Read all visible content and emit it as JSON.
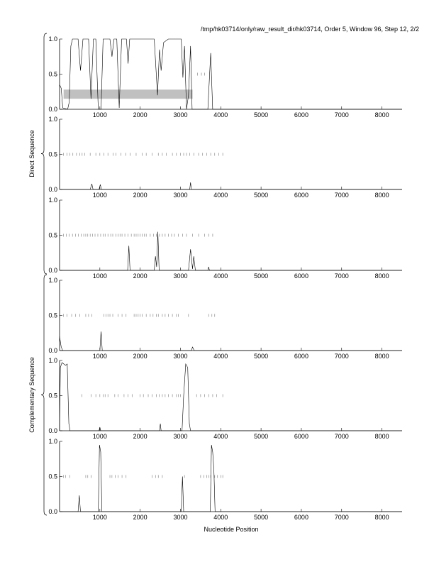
{
  "chart_data": {
    "type": "line",
    "title": "/tmp/hk03714/only/raw_result_dir/hk03714, Order 5, Window 96, Step 12, 2/2",
    "xlabel": "Nucleotide Position",
    "xlim": [
      0,
      8500
    ],
    "ylim": [
      0,
      1
    ],
    "x_ticks": [
      1000,
      2000,
      3000,
      4000,
      5000,
      6000,
      7000,
      8000
    ],
    "y_ticks": [
      "0.0",
      "0.5",
      "1.0"
    ],
    "groups": [
      {
        "label": "Direct Sequence",
        "panels": [
          0,
          1,
          2
        ]
      },
      {
        "label": "Complementary Sequence",
        "panels": [
          3,
          4,
          5
        ]
      }
    ],
    "panels": [
      {
        "points": [
          [
            0,
            0.35
          ],
          [
            40,
            0.3
          ],
          [
            80,
            0.02
          ],
          [
            200,
            0.0
          ],
          [
            240,
            0.1
          ],
          [
            280,
            0.9
          ],
          [
            320,
            1.0
          ],
          [
            460,
            1.0
          ],
          [
            520,
            0.55
          ],
          [
            580,
            1.0
          ],
          [
            720,
            1.0
          ],
          [
            780,
            0.15
          ],
          [
            840,
            1.0
          ],
          [
            900,
            1.0
          ],
          [
            960,
            0.0
          ],
          [
            1030,
            0.0
          ],
          [
            1080,
            1.0
          ],
          [
            1250,
            1.0
          ],
          [
            1300,
            0.75
          ],
          [
            1350,
            1.0
          ],
          [
            1420,
            1.0
          ],
          [
            1480,
            0.02
          ],
          [
            1540,
            1.0
          ],
          [
            1660,
            1.0
          ],
          [
            1700,
            0.65
          ],
          [
            1740,
            1.0
          ],
          [
            2350,
            1.0
          ],
          [
            2430,
            0.2
          ],
          [
            2480,
            0.85
          ],
          [
            2520,
            0.55
          ],
          [
            2580,
            0.95
          ],
          [
            2700,
            1.0
          ],
          [
            3020,
            1.0
          ],
          [
            3060,
            0.45
          ],
          [
            3100,
            0.9
          ],
          [
            3150,
            0.0
          ],
          [
            3200,
            0.2
          ],
          [
            3250,
            0.9
          ],
          [
            3290,
            0.0
          ],
          [
            3680,
            0.0
          ],
          [
            3750,
            0.8
          ],
          [
            3800,
            0.0
          ],
          [
            8500,
            0.0
          ]
        ],
        "marks": [
          3420,
          3520,
          3600
        ],
        "band": {
          "x": [
            100,
            3300
          ],
          "y": [
            0.15,
            0.28
          ]
        }
      },
      {
        "points": [
          [
            0,
            0
          ],
          [
            760,
            0
          ],
          [
            800,
            0.08
          ],
          [
            830,
            0
          ],
          [
            980,
            0
          ],
          [
            1010,
            0.07
          ],
          [
            1040,
            0
          ],
          [
            3230,
            0
          ],
          [
            3250,
            0.1
          ],
          [
            3270,
            0
          ],
          [
            8500,
            0
          ]
        ],
        "marks": [
          100,
          180,
          250,
          330,
          420,
          500,
          560,
          620,
          760,
          900,
          1000,
          1100,
          1200,
          1330,
          1400,
          1520,
          1640,
          1750,
          1900,
          2050,
          2150,
          2300,
          2450,
          2550,
          2650,
          2800,
          2900,
          3000,
          3080,
          3150,
          3230,
          3330,
          3450,
          3550,
          3650,
          3750,
          3850,
          3950,
          4050
        ]
      },
      {
        "points": [
          [
            0,
            0
          ],
          [
            1690,
            0
          ],
          [
            1720,
            0.35
          ],
          [
            1750,
            0
          ],
          [
            2350,
            0
          ],
          [
            2380,
            0.2
          ],
          [
            2410,
            0.05
          ],
          [
            2440,
            0.55
          ],
          [
            2470,
            0
          ],
          [
            3200,
            0
          ],
          [
            3250,
            0.3
          ],
          [
            3300,
            0.02
          ],
          [
            3330,
            0.2
          ],
          [
            3370,
            0
          ],
          [
            3680,
            0
          ],
          [
            3700,
            0.05
          ],
          [
            3720,
            0
          ],
          [
            8500,
            0
          ]
        ],
        "marks": [
          100,
          170,
          240,
          320,
          400,
          470,
          540,
          600,
          650,
          700,
          760,
          820,
          880,
          950,
          1020,
          1080,
          1130,
          1200,
          1270,
          1320,
          1400,
          1450,
          1500,
          1550,
          1620,
          1700,
          1780,
          1850,
          1900,
          1950,
          2000,
          2050,
          2100,
          2150,
          2250,
          2330,
          2400,
          2480,
          2550,
          2620,
          2700,
          2780,
          2850,
          2950,
          3050,
          3150,
          3300,
          3450,
          3600,
          3700,
          3800
        ]
      },
      {
        "points": [
          [
            0,
            0.2
          ],
          [
            40,
            0.05
          ],
          [
            80,
            0
          ],
          [
            1000,
            0
          ],
          [
            1030,
            0.27
          ],
          [
            1060,
            0
          ],
          [
            3270,
            0
          ],
          [
            3300,
            0.05
          ],
          [
            3340,
            0
          ],
          [
            8500,
            0
          ]
        ],
        "marks": [
          100,
          180,
          300,
          400,
          500,
          650,
          720,
          800,
          1100,
          1150,
          1200,
          1250,
          1320,
          1450,
          1550,
          1650,
          1850,
          1900,
          1950,
          2000,
          2050,
          2150,
          2250,
          2320,
          2400,
          2450,
          2550,
          2620,
          2700,
          2800,
          2900,
          2950,
          3200,
          3700,
          3780,
          3850
        ]
      },
      {
        "points": [
          [
            0,
            0
          ],
          [
            20,
            0.9
          ],
          [
            60,
            0.97
          ],
          [
            150,
            0.93
          ],
          [
            190,
            0.95
          ],
          [
            230,
            0.1
          ],
          [
            260,
            0
          ],
          [
            980,
            0
          ],
          [
            1000,
            0.05
          ],
          [
            1020,
            0
          ],
          [
            2480,
            0
          ],
          [
            2500,
            0.1
          ],
          [
            2520,
            0
          ],
          [
            3040,
            0
          ],
          [
            3080,
            0.5
          ],
          [
            3130,
            0.95
          ],
          [
            3180,
            0.9
          ],
          [
            3220,
            0.1
          ],
          [
            3250,
            0
          ],
          [
            8500,
            0
          ]
        ],
        "marks": [
          550,
          780,
          900,
          1000,
          1080,
          1130,
          1200,
          1370,
          1450,
          1600,
          1700,
          1800,
          2000,
          2080,
          2200,
          2300,
          2400,
          2470,
          2550,
          2620,
          2700,
          2800,
          2900,
          2950,
          3000,
          3400,
          3500,
          3600,
          3700,
          3800,
          3900,
          4050
        ]
      },
      {
        "points": [
          [
            0,
            0
          ],
          [
            460,
            0
          ],
          [
            490,
            0.23
          ],
          [
            520,
            0
          ],
          [
            960,
            0
          ],
          [
            990,
            0.95
          ],
          [
            1020,
            0.85
          ],
          [
            1050,
            0
          ],
          [
            3020,
            0
          ],
          [
            3050,
            0.5
          ],
          [
            3080,
            0
          ],
          [
            3740,
            0
          ],
          [
            3770,
            0.95
          ],
          [
            3800,
            0.85
          ],
          [
            3830,
            0.6
          ],
          [
            3860,
            0
          ],
          [
            8500,
            0
          ]
        ],
        "marks": [
          100,
          150,
          250,
          650,
          700,
          780,
          1250,
          1300,
          1380,
          1450,
          1550,
          1650,
          2300,
          2380,
          2450,
          2550,
          3100,
          3500,
          3580,
          3650,
          3700,
          3750,
          3850,
          3920,
          4000,
          4050
        ]
      }
    ]
  }
}
